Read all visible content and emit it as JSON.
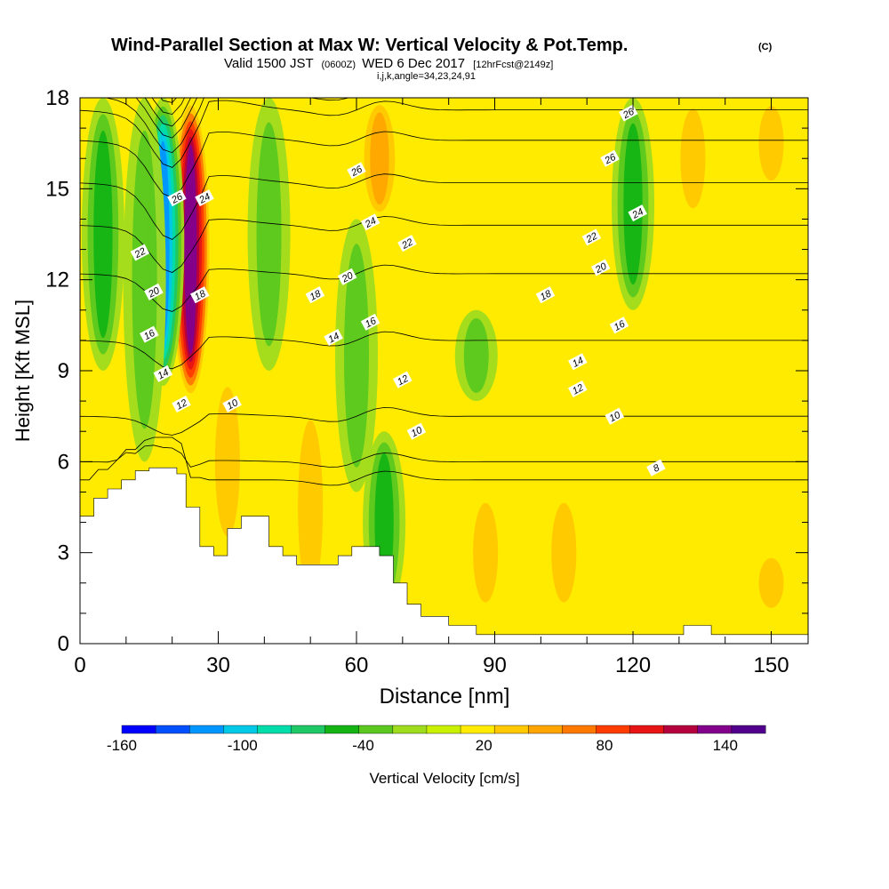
{
  "chart_data": {
    "type": "heatmap",
    "title": "Wind-Parallel Section at Max W: Vertical Velocity & Pot.Temp.",
    "title_mark": "(C)",
    "subtitle_parts": [
      "Valid 1500 JST",
      "(0600Z)",
      "WED 6 Dec 2017",
      "[12hrFcst@2149z]"
    ],
    "subtitle2": "i,j,k,angle=34,23,24,91",
    "xlabel": "Distance [nm]",
    "ylabel": "Height [Kft MSL]",
    "xlim": [
      0,
      158
    ],
    "ylim": [
      0,
      18
    ],
    "x_ticks": [
      0,
      30,
      60,
      90,
      120,
      150
    ],
    "y_ticks": [
      0,
      3,
      6,
      9,
      12,
      15,
      18
    ],
    "grid": false,
    "colorbar": {
      "label": "Vertical Velocity [cm/s]",
      "tick_labels": [
        "-160",
        "-100",
        "-40",
        "20",
        "80",
        "140"
      ],
      "tick_values": [
        -160,
        -100,
        -40,
        20,
        80,
        140
      ],
      "range": [
        -160,
        160
      ],
      "colors": [
        "#0000ff",
        "#0050ff",
        "#0096ff",
        "#00c8e6",
        "#00dcaa",
        "#1ec864",
        "#14b414",
        "#5ac81e",
        "#a0dc1e",
        "#c8f000",
        "#ffeb00",
        "#ffc800",
        "#ffa500",
        "#ff7800",
        "#ff3c00",
        "#e61414",
        "#b4003c",
        "#82008c",
        "#50008c"
      ]
    },
    "velocity_fields": [
      {
        "x": 24,
        "z0": 8.0,
        "z1": 18,
        "w": 140
      },
      {
        "x": 18,
        "z0": 8.5,
        "z1": 18,
        "w": -110
      },
      {
        "x": 14,
        "z0": 6.0,
        "z1": 18,
        "w": -40
      },
      {
        "x": 5,
        "z0": 9.0,
        "z1": 18,
        "w": -45
      },
      {
        "x": 41,
        "z0": 9.0,
        "z1": 18,
        "w": -40
      },
      {
        "x": 32,
        "z0": 3.0,
        "z1": 9,
        "w": 35
      },
      {
        "x": 50,
        "z0": 1.0,
        "z1": 8,
        "w": 30
      },
      {
        "x": 65,
        "z0": 14,
        "z1": 18,
        "w": 50
      },
      {
        "x": 60,
        "z0": 5.0,
        "z1": 14,
        "w": -30
      },
      {
        "x": 66,
        "z0": 1.0,
        "z1": 7,
        "w": -50
      },
      {
        "x": 88,
        "z0": 1.0,
        "z1": 5,
        "w": 35
      },
      {
        "x": 105,
        "z0": 1.0,
        "z1": 5,
        "w": 30
      },
      {
        "x": 120,
        "z0": 11,
        "z1": 18,
        "w": -50
      },
      {
        "x": 133,
        "z0": 14,
        "z1": 18,
        "w": 35
      },
      {
        "x": 150,
        "z0": 15,
        "z1": 18,
        "w": 30
      },
      {
        "x": 150,
        "z0": 1.0,
        "z1": 3,
        "w": 30
      },
      {
        "x": 86,
        "z0": 8.0,
        "z1": 11,
        "w": -25
      }
    ],
    "terrain": {
      "x": [
        0,
        3,
        3,
        6,
        6,
        9,
        9,
        12,
        12,
        15,
        15,
        21,
        21,
        23,
        23,
        26,
        26,
        29,
        29,
        32,
        32,
        35,
        35,
        41,
        41,
        44,
        44,
        47,
        47,
        50,
        50,
        56,
        56,
        59,
        59,
        65,
        65,
        68,
        68,
        71,
        71,
        74,
        74,
        80,
        80,
        86,
        86,
        131,
        131,
        137,
        137,
        158
      ],
      "z": [
        4.2,
        4.2,
        4.8,
        4.8,
        5.1,
        5.1,
        5.4,
        5.4,
        5.7,
        5.7,
        5.8,
        5.8,
        5.6,
        5.6,
        4.5,
        4.5,
        3.2,
        3.2,
        2.9,
        2.9,
        3.8,
        3.8,
        4.2,
        4.2,
        3.2,
        3.2,
        2.9,
        2.9,
        2.6,
        2.6,
        2.6,
        2.6,
        2.9,
        2.9,
        3.2,
        3.2,
        2.9,
        2.9,
        2.0,
        2.0,
        1.3,
        1.3,
        0.9,
        0.9,
        0.6,
        0.6,
        0.3,
        0.3,
        0.6,
        0.6,
        0.3,
        0.3
      ]
    },
    "isentropes": {
      "base_z": [
        5.4,
        6.0,
        7.5,
        10.0,
        12.2,
        13.8,
        15.2,
        16.6,
        17.6,
        18.1,
        18.6,
        19.0,
        19.4,
        19.8,
        20.2,
        20.6,
        21.0,
        21.4,
        21.8,
        22.2,
        22.6
      ],
      "labels": [
        {
          "text": "8",
          "x": 125,
          "z": 5.8
        },
        {
          "text": "10",
          "x": 33,
          "z": 7.9
        },
        {
          "text": "10",
          "x": 73,
          "z": 7.0
        },
        {
          "text": "10",
          "x": 116,
          "z": 7.5
        },
        {
          "text": "12",
          "x": 22,
          "z": 7.9
        },
        {
          "text": "12",
          "x": 70,
          "z": 8.7
        },
        {
          "text": "12",
          "x": 108,
          "z": 8.4
        },
        {
          "text": "14",
          "x": 18,
          "z": 8.9
        },
        {
          "text": "14",
          "x": 55,
          "z": 10.1
        },
        {
          "text": "14",
          "x": 108,
          "z": 9.3
        },
        {
          "text": "16",
          "x": 15,
          "z": 10.2
        },
        {
          "text": "16",
          "x": 63,
          "z": 10.6
        },
        {
          "text": "16",
          "x": 117,
          "z": 10.5
        },
        {
          "text": "18",
          "x": 26,
          "z": 11.5
        },
        {
          "text": "18",
          "x": 51,
          "z": 11.5
        },
        {
          "text": "18",
          "x": 101,
          "z": 11.5
        },
        {
          "text": "20",
          "x": 16,
          "z": 11.6
        },
        {
          "text": "20",
          "x": 58,
          "z": 12.1
        },
        {
          "text": "20",
          "x": 113,
          "z": 12.4
        },
        {
          "text": "22",
          "x": 13,
          "z": 12.9
        },
        {
          "text": "22",
          "x": 71,
          "z": 13.2
        },
        {
          "text": "22",
          "x": 111,
          "z": 13.4
        },
        {
          "text": "24",
          "x": 27,
          "z": 14.7
        },
        {
          "text": "24",
          "x": 63,
          "z": 13.9
        },
        {
          "text": "24",
          "x": 121,
          "z": 14.2
        },
        {
          "text": "26",
          "x": 21,
          "z": 14.7
        },
        {
          "text": "26",
          "x": 60,
          "z": 15.6
        },
        {
          "text": "26",
          "x": 115,
          "z": 16.0
        },
        {
          "text": "26",
          "x": 119,
          "z": 17.5
        }
      ]
    }
  }
}
